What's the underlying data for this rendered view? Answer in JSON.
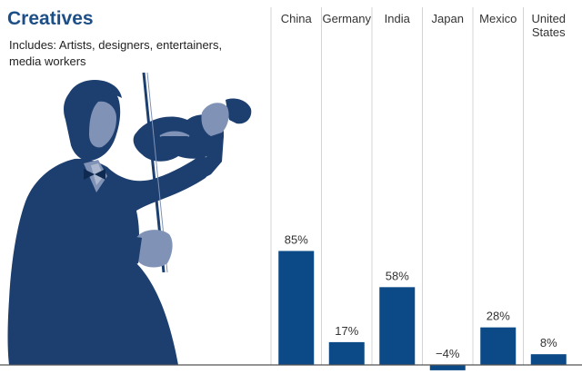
{
  "title": "Creatives",
  "subtitle_lines": [
    "Includes: Artists, designers, entertainers,",
    "media workers"
  ],
  "illustration": "violinist-icon",
  "colors": {
    "bar": "#0b4a86",
    "title": "#1d4f86",
    "silhouette": "#1d3f70",
    "silhouette_light": "#8093b6"
  },
  "chart_data": {
    "type": "bar",
    "categories": [
      {
        "lines": [
          "China"
        ]
      },
      {
        "lines": [
          "Germany"
        ]
      },
      {
        "lines": [
          "India"
        ]
      },
      {
        "lines": [
          "Japan"
        ]
      },
      {
        "lines": [
          "Mexico"
        ]
      },
      {
        "lines": [
          "United",
          "States"
        ]
      }
    ],
    "values": [
      85,
      17,
      58,
      -4,
      28,
      8
    ],
    "value_labels": [
      "85%",
      "17%",
      "58%",
      "−4%",
      "28%",
      "8%"
    ],
    "unit": "%",
    "ylim": [
      -5,
      100
    ],
    "grid": false
  }
}
